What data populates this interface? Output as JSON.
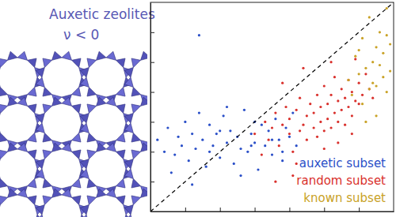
{
  "chart_data": {
    "type": "scatter",
    "title": "Auxetic zeolites",
    "subtitle": "ν < 0",
    "xlim": [
      0,
      7
    ],
    "ylim": [
      0,
      7
    ],
    "xticks": [
      1,
      2,
      3,
      4,
      5,
      6
    ],
    "yticks": [
      1,
      2,
      3,
      4,
      5,
      6
    ],
    "tick_labels": false,
    "grid": false,
    "legend": "lower right",
    "series": [
      {
        "name": "auxetic subset",
        "color": "#2a4fc8",
        "marker": "circle",
        "x": [
          0.2,
          0.4,
          0.5,
          0.7,
          0.8,
          0.9,
          1.0,
          1.1,
          1.2,
          1.3,
          1.4,
          1.5,
          1.6,
          1.7,
          1.8,
          1.9,
          2.0,
          2.1,
          2.2,
          2.3,
          2.4,
          2.5,
          2.6,
          2.7,
          2.8,
          2.9,
          3.0,
          3.1,
          3.2,
          3.3,
          3.4,
          3.5,
          3.6,
          3.7,
          3.8,
          3.9,
          4.0,
          4.1,
          4.2,
          1.4,
          0.6,
          1.2,
          2.0,
          2.6,
          3.0,
          3.5,
          2.2,
          1.7,
          3.8,
          2.9
        ],
        "values": [
          2.4,
          2.0,
          2.8,
          1.9,
          2.5,
          2.2,
          3.0,
          1.7,
          2.6,
          2.1,
          5.9,
          2.4,
          1.5,
          2.9,
          2.2,
          2.6,
          1.8,
          3.2,
          2.3,
          2.7,
          1.6,
          2.5,
          2.1,
          3.4,
          2.0,
          2.6,
          2.3,
          1.4,
          2.9,
          2.2,
          2.7,
          1.9,
          3.1,
          2.4,
          2.0,
          2.8,
          2.5,
          3.3,
          2.2,
          3.3,
          1.3,
          0.9,
          2.7,
          1.2,
          3.0,
          2.4,
          3.5,
          2.0,
          1.7,
          2.2
        ]
      },
      {
        "name": "random subset",
        "color": "#d9302c",
        "marker": "circle",
        "x": [
          3.0,
          3.2,
          3.3,
          3.4,
          3.5,
          3.6,
          3.7,
          3.8,
          3.9,
          4.0,
          4.0,
          4.1,
          4.2,
          4.3,
          4.3,
          4.4,
          4.5,
          4.5,
          4.6,
          4.7,
          4.7,
          4.8,
          4.8,
          4.9,
          4.9,
          5.0,
          5.0,
          5.1,
          5.1,
          5.2,
          5.2,
          5.3,
          5.3,
          5.4,
          5.4,
          5.5,
          5.5,
          5.6,
          5.6,
          5.7,
          5.7,
          5.8,
          5.8,
          5.9,
          5.9,
          6.0,
          6.0,
          6.1,
          6.2,
          6.3,
          4.2,
          4.1,
          5.0,
          5.4,
          3.8,
          4.4,
          5.2,
          5.8,
          6.4,
          3.6
        ],
        "values": [
          2.6,
          1.9,
          3.0,
          2.4,
          2.8,
          3.3,
          2.2,
          2.9,
          3.5,
          2.6,
          3.1,
          2.0,
          3.4,
          2.7,
          3.8,
          2.9,
          3.2,
          2.4,
          3.6,
          2.8,
          3.3,
          2.5,
          3.9,
          3.0,
          3.5,
          2.7,
          4.2,
          3.1,
          3.6,
          2.8,
          3.9,
          3.3,
          4.5,
          3.0,
          3.7,
          3.4,
          4.1,
          2.9,
          3.8,
          3.5,
          4.4,
          3.2,
          4.0,
          3.7,
          5.1,
          3.6,
          4.3,
          3.9,
          4.6,
          4.1,
          1.6,
          1.2,
          2.1,
          2.3,
          4.3,
          4.8,
          5.0,
          2.6,
          3.8,
          1.0
        ]
      },
      {
        "name": "known subset",
        "color": "#c9a227",
        "marker": "circle",
        "x": [
          5.7,
          5.8,
          5.9,
          6.0,
          6.1,
          6.1,
          6.2,
          6.3,
          6.3,
          6.4,
          6.4,
          6.5,
          6.5,
          6.6,
          6.6,
          6.7,
          6.7,
          6.8,
          6.8,
          6.9,
          6.9,
          6.2,
          6.5,
          6.8,
          6.0
        ],
        "values": [
          4.4,
          3.9,
          5.2,
          4.6,
          3.6,
          5.8,
          4.8,
          4.1,
          6.5,
          5.0,
          4.3,
          5.5,
          3.2,
          4.9,
          6.0,
          4.5,
          5.3,
          4.0,
          6.8,
          4.7,
          5.6,
          3.0,
          4.2,
          5.9,
          5.4
        ]
      },
      {
        "type": "line",
        "line_style": "dashed",
        "color": "#000000",
        "x": [
          0,
          7
        ],
        "values": [
          0,
          7
        ]
      }
    ]
  }
}
